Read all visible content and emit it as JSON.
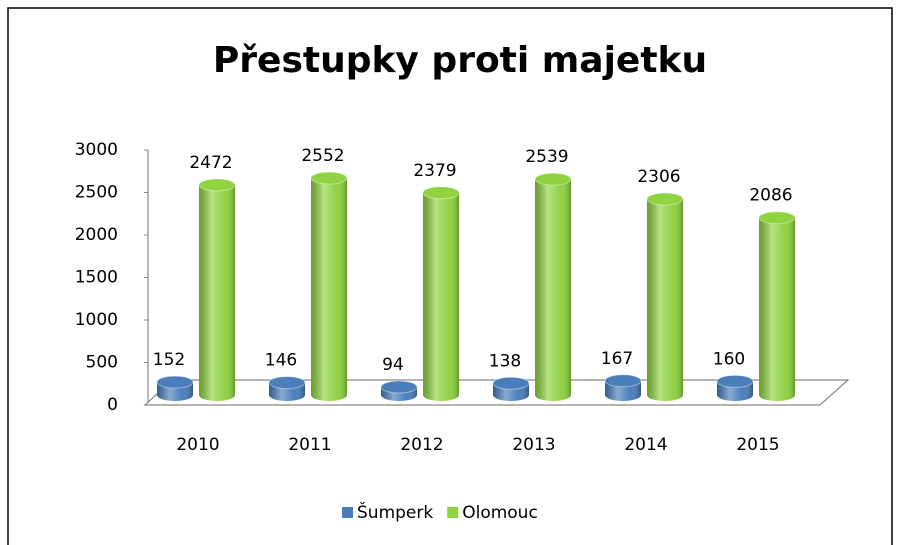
{
  "chart_data": {
    "type": "bar3d",
    "title": "Přestupky proti majetku",
    "categories": [
      "2010",
      "2011",
      "2012",
      "2013",
      "2014",
      "2015"
    ],
    "series": [
      {
        "name": "Šumperk",
        "color": "#4a7ebb",
        "values": [
          152,
          146,
          94,
          138,
          167,
          160
        ]
      },
      {
        "name": "Olomouc",
        "color": "#8fd340",
        "values": [
          2472,
          2552,
          2379,
          2539,
          2306,
          2086
        ]
      }
    ],
    "ylim": [
      0,
      3000
    ],
    "yticks": [
      0,
      500,
      1000,
      1500,
      2000,
      2500,
      3000
    ],
    "legend": "bottom"
  }
}
